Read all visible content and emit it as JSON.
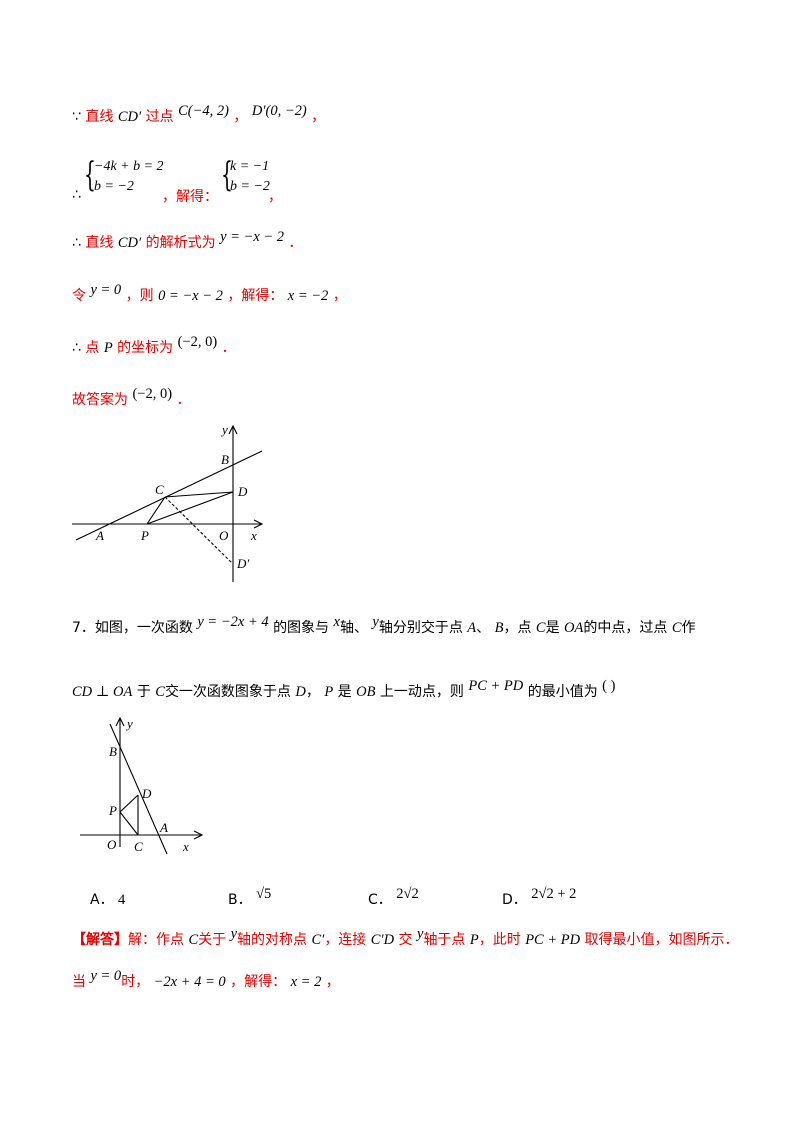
{
  "sol6": {
    "l1": {
      "since": "∵",
      "a": "直线",
      "cd": "CD′",
      "b": "过点",
      "c": "C(−4, 2)",
      "comma1": "，",
      "d": "D′(0, −2)",
      "comma2": "，"
    },
    "l2": {
      "therefore": "∴",
      "eq1": "−4k + b = 2",
      "eq2": "b = −2",
      "solve": "，解得：",
      "r1": "k = −1",
      "r2": "b = −2",
      "end": "，"
    },
    "l3": {
      "therefore": "∴",
      "a": "直线",
      "cd": "CD′",
      "b": "的解析式为",
      "eq": "y = −x − 2",
      "end": "．"
    },
    "l4": {
      "a": "令",
      "eq1": "y = 0",
      "b": "，则",
      "eq2": "0 = −x − 2",
      "c": "，解得：",
      "eq3": "x = −2",
      "end": "，"
    },
    "l5": {
      "therefore": "∴",
      "a": "点",
      "p": "P",
      "b": "的坐标为",
      "coord": "(−2, 0)",
      "end": "．"
    },
    "l6": {
      "a": "故答案为",
      "coord": "(−2, 0)",
      "end": "．"
    },
    "fig_labels": {
      "y": "y",
      "x": "x",
      "B": "B",
      "C": "C",
      "D": "D",
      "A": "A",
      "P": "P",
      "O": "O",
      "Dp": "D′"
    }
  },
  "q7": {
    "l1": {
      "num": "7．",
      "a": "如图，一次函数",
      "eq": "y = −2x + 4",
      "b": "的图象与",
      "x": "x",
      "c": "轴、",
      "y": "y",
      "d": "轴分别交于点",
      "A": "A",
      "sep": "、",
      "B": "B",
      "e": "，点",
      "C": "C",
      "f": "是",
      "OA": "OA",
      "g": "的中点，过点",
      "C2": "C",
      "h": "作"
    },
    "l2": {
      "cd": "CD ⊥ OA",
      "a": "于",
      "C": "C",
      "b": "交一次函数图象于点",
      "D": "D",
      "c": "，",
      "P": "P",
      "d": "是",
      "OB": "OB",
      "e": "上一动点，则",
      "expr": "PC + PD",
      "f": "的最小值为",
      "paren": "(      )"
    },
    "fig_labels": {
      "y": "y",
      "B": "B",
      "P": "P",
      "D": "D",
      "A": "A",
      "O": "O",
      "C": "C",
      "x": "x"
    },
    "options": [
      {
        "letter": "A．",
        "value": "4"
      },
      {
        "letter": "B．",
        "value": "√5"
      },
      {
        "letter": "C．",
        "value": "2√2"
      },
      {
        "letter": "D．",
        "value": "2√2 + 2"
      }
    ]
  },
  "ans7": {
    "l1": {
      "tag": "【解答】",
      "a": "解：作点",
      "C": "C",
      "b": "关于",
      "y": "y",
      "c": "轴的对称点",
      "Cp": "C′",
      "d": "，连接",
      "CpD": "C′D",
      "e": "交",
      "y2": "y",
      "f": "轴于点",
      "P": "P",
      "g": "，此时",
      "expr": "PC + PD",
      "h": "取得最小值，如图所示．"
    },
    "l2": {
      "a": "当",
      "eq1": "y = 0",
      "b": "时，",
      "eq2": "−2x + 4 = 0",
      "c": "，解得：",
      "eq3": "x = 2",
      "end": "，"
    }
  },
  "colors": {
    "accent_red": "#e60000",
    "text": "#000000"
  }
}
